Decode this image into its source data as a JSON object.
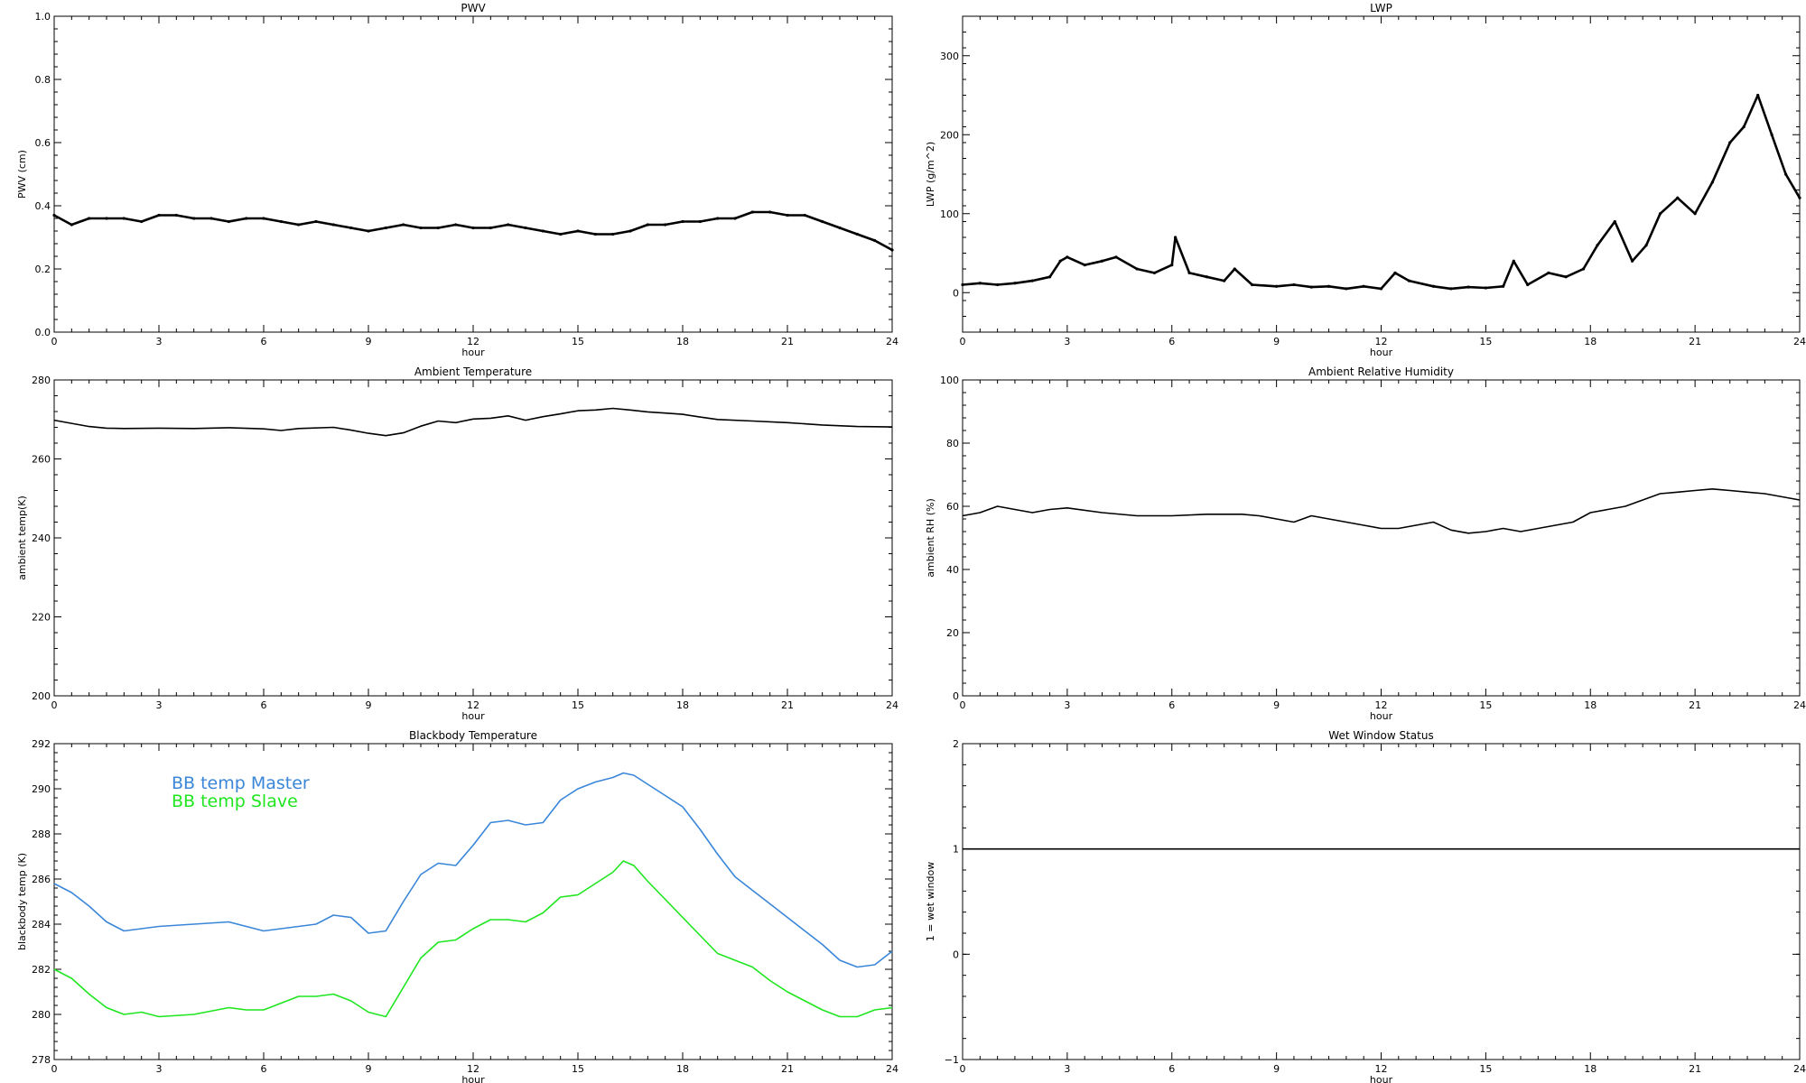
{
  "chart_data": [
    {
      "type": "line",
      "title": "PWV",
      "xlabel": "hour",
      "ylabel": "PWV (cm)",
      "xlim": [
        0,
        24
      ],
      "ylim": [
        0,
        1
      ],
      "xticks": [
        "0",
        "3",
        "6",
        "9",
        "12",
        "15",
        "18",
        "21",
        "24"
      ],
      "yticks": [
        "0.0",
        "0.2",
        "0.4",
        "0.6",
        "0.8",
        "1.0"
      ],
      "style": "dots",
      "series": [
        {
          "color": "#000000",
          "x": [
            0,
            0.5,
            1,
            1.5,
            2,
            2.5,
            3,
            3.5,
            4,
            4.5,
            5,
            5.5,
            6,
            6.5,
            7,
            7.5,
            8,
            8.5,
            9,
            9.5,
            10,
            10.5,
            11,
            11.5,
            12,
            12.5,
            13,
            13.5,
            14,
            14.5,
            15,
            15.5,
            16,
            16.5,
            17,
            17.5,
            18,
            18.5,
            19,
            19.5,
            20,
            20.5,
            21,
            21.5,
            22,
            22.5,
            23,
            23.5,
            24
          ],
          "y": [
            0.37,
            0.34,
            0.36,
            0.36,
            0.36,
            0.35,
            0.37,
            0.37,
            0.36,
            0.36,
            0.35,
            0.36,
            0.36,
            0.35,
            0.34,
            0.35,
            0.34,
            0.33,
            0.32,
            0.33,
            0.34,
            0.33,
            0.33,
            0.34,
            0.33,
            0.33,
            0.34,
            0.33,
            0.32,
            0.31,
            0.32,
            0.31,
            0.31,
            0.32,
            0.34,
            0.34,
            0.35,
            0.35,
            0.36,
            0.36,
            0.38,
            0.38,
            0.37,
            0.37,
            0.35,
            0.33,
            0.31,
            0.29,
            0.26
          ]
        }
      ]
    },
    {
      "type": "line",
      "title": "LWP",
      "xlabel": "hour",
      "ylabel": "LWP (g/m^2)",
      "xlim": [
        0,
        24
      ],
      "ylim": [
        -50,
        350
      ],
      "xticks": [
        "0",
        "3",
        "6",
        "9",
        "12",
        "15",
        "18",
        "21",
        "24"
      ],
      "yticks": [
        "0",
        "100",
        "200",
        "300"
      ],
      "style": "dots",
      "series": [
        {
          "color": "#000000",
          "x": [
            0,
            0.5,
            1,
            1.5,
            2,
            2.5,
            2.8,
            3,
            3.5,
            4,
            4.4,
            5,
            5.5,
            6,
            6.1,
            6.5,
            7,
            7.5,
            7.8,
            8.3,
            9,
            9.5,
            10,
            10.5,
            11,
            11.5,
            12,
            12.4,
            12.8,
            13.5,
            14,
            14.5,
            15,
            15.5,
            15.8,
            16.2,
            16.8,
            17.3,
            17.8,
            18.2,
            18.7,
            19.2,
            19.6,
            20,
            20.5,
            21,
            21.5,
            22,
            22.4,
            22.8,
            23.2,
            23.6,
            24
          ],
          "y": [
            10,
            12,
            10,
            12,
            15,
            20,
            40,
            45,
            35,
            40,
            45,
            30,
            25,
            35,
            70,
            25,
            20,
            15,
            30,
            10,
            8,
            10,
            7,
            8,
            5,
            8,
            5,
            25,
            15,
            8,
            5,
            7,
            6,
            8,
            40,
            10,
            25,
            20,
            30,
            60,
            90,
            40,
            60,
            100,
            120,
            100,
            140,
            190,
            210,
            250,
            200,
            150,
            120
          ]
        }
      ]
    },
    {
      "type": "line",
      "title": "Ambient Temperature",
      "xlabel": "hour",
      "ylabel": "ambient temp(K)",
      "xlim": [
        0,
        24
      ],
      "ylim": [
        200,
        280
      ],
      "xticks": [
        "0",
        "3",
        "6",
        "9",
        "12",
        "15",
        "18",
        "21",
        "24"
      ],
      "yticks": [
        "200",
        "220",
        "240",
        "260",
        "280"
      ],
      "style": "line",
      "series": [
        {
          "color": "#000000",
          "x": [
            0,
            0.5,
            1,
            1.5,
            2,
            3,
            4,
            5,
            6,
            6.5,
            7,
            8,
            8.5,
            9,
            9.5,
            10,
            10.5,
            11,
            11.5,
            12,
            12.5,
            13,
            13.5,
            14,
            14.5,
            15,
            15.5,
            16,
            16.5,
            17,
            17.5,
            18,
            18.5,
            19,
            20,
            21,
            22,
            23,
            24
          ],
          "y": [
            269.8,
            269,
            268.2,
            267.8,
            267.7,
            267.8,
            267.7,
            267.9,
            267.6,
            267.2,
            267.7,
            268,
            267.3,
            266.5,
            265.9,
            266.6,
            268.3,
            269.6,
            269.2,
            270.1,
            270.3,
            270.9,
            269.8,
            270.7,
            271.4,
            272.2,
            272.4,
            272.8,
            272.4,
            271.9,
            271.6,
            271.3,
            270.6,
            270,
            269.6,
            269.2,
            268.6,
            268.2,
            268.1
          ]
        }
      ]
    },
    {
      "type": "line",
      "title": "Ambient Relative Humidity",
      "xlabel": "hour",
      "ylabel": "ambient RH (%)",
      "xlim": [
        0,
        24
      ],
      "ylim": [
        0,
        100
      ],
      "xticks": [
        "0",
        "3",
        "6",
        "9",
        "12",
        "15",
        "18",
        "21",
        "24"
      ],
      "yticks": [
        "0",
        "20",
        "40",
        "60",
        "80",
        "100"
      ],
      "style": "line",
      "series": [
        {
          "color": "#000000",
          "x": [
            0,
            0.5,
            1,
            1.5,
            2,
            2.5,
            3,
            4,
            5,
            6,
            7,
            8,
            8.5,
            9,
            9.5,
            10,
            10.5,
            11,
            11.5,
            12,
            12.5,
            13,
            13.5,
            14,
            14.5,
            15,
            15.5,
            16,
            16.5,
            17,
            17.5,
            18,
            18.5,
            19,
            19.5,
            20,
            20.5,
            21,
            21.5,
            22,
            22.5,
            23,
            23.5,
            24
          ],
          "y": [
            57,
            58,
            60,
            59,
            58,
            59,
            59.5,
            58,
            57,
            57,
            57.5,
            57.5,
            57,
            56,
            55,
            57,
            56,
            55,
            54,
            53,
            53,
            54,
            55,
            52.5,
            51.5,
            52,
            53,
            52,
            53,
            54,
            55,
            58,
            59,
            60,
            62,
            64,
            64.5,
            65,
            65.5,
            65,
            64.5,
            64,
            63,
            62
          ]
        }
      ]
    },
    {
      "type": "line",
      "title": "Blackbody Temperature",
      "xlabel": "hour",
      "ylabel": "blackbody temp (K)",
      "xlim": [
        0,
        24
      ],
      "ylim": [
        278,
        292
      ],
      "xticks": [
        "0",
        "3",
        "6",
        "9",
        "12",
        "15",
        "18",
        "21",
        "24"
      ],
      "yticks": [
        "278",
        "280",
        "282",
        "284",
        "286",
        "288",
        "290",
        "292"
      ],
      "style": "line",
      "legend": "top-left",
      "series": [
        {
          "name": "BB temp Master",
          "color": "#3a86d8",
          "x": [
            0,
            0.5,
            1,
            1.5,
            2,
            2.5,
            3,
            4,
            5,
            5.5,
            6,
            6.5,
            7,
            7.5,
            8,
            8.5,
            9,
            9.5,
            10,
            10.5,
            11,
            11.5,
            12,
            12.5,
            13,
            13.5,
            14,
            14.5,
            15,
            15.5,
            16,
            16.3,
            16.6,
            17,
            17.5,
            18,
            18.5,
            19,
            19.5,
            20,
            20.5,
            21,
            21.5,
            22,
            22.5,
            23,
            23.5,
            24
          ],
          "y": [
            285.8,
            285.4,
            284.8,
            284.1,
            283.7,
            283.8,
            283.9,
            284,
            284.1,
            283.9,
            283.7,
            283.8,
            283.9,
            284,
            284.4,
            284.3,
            283.6,
            283.7,
            285,
            286.2,
            286.7,
            286.6,
            287.5,
            288.5,
            288.6,
            288.4,
            288.5,
            289.5,
            290,
            290.3,
            290.5,
            290.7,
            290.6,
            290.2,
            289.7,
            289.2,
            288.2,
            287.1,
            286.1,
            285.5,
            284.9,
            284.3,
            283.7,
            283.1,
            282.4,
            282.1,
            282.2,
            282.8
          ]
        },
        {
          "name": "BB temp Slave",
          "color": "#1fe61f",
          "x": [
            0,
            0.5,
            1,
            1.5,
            2,
            2.5,
            3,
            4,
            5,
            5.5,
            6,
            6.5,
            7,
            7.5,
            8,
            8.5,
            9,
            9.5,
            10,
            10.5,
            11,
            11.5,
            12,
            12.5,
            13,
            13.5,
            14,
            14.5,
            15,
            15.5,
            16,
            16.3,
            16.6,
            17,
            17.5,
            18,
            18.5,
            19,
            19.5,
            20,
            20.5,
            21,
            21.5,
            22,
            22.5,
            23,
            23.5,
            24
          ],
          "y": [
            282,
            281.6,
            280.9,
            280.3,
            280,
            280.1,
            279.9,
            280,
            280.3,
            280.2,
            280.2,
            280.5,
            280.8,
            280.8,
            280.9,
            280.6,
            280.1,
            279.9,
            281.2,
            282.5,
            283.2,
            283.3,
            283.8,
            284.2,
            284.2,
            284.1,
            284.5,
            285.2,
            285.3,
            285.8,
            286.3,
            286.8,
            286.6,
            285.9,
            285.1,
            284.3,
            283.5,
            282.7,
            282.4,
            282.1,
            281.5,
            281,
            280.6,
            280.2,
            279.9,
            279.9,
            280.2,
            280.3
          ]
        }
      ]
    },
    {
      "type": "line",
      "title": "Wet Window Status",
      "xlabel": "hour",
      "ylabel": "1 = wet window",
      "xlim": [
        0,
        24
      ],
      "ylim": [
        -1,
        2
      ],
      "xticks": [
        "0",
        "3",
        "6",
        "9",
        "12",
        "15",
        "18",
        "21",
        "24"
      ],
      "yticks": [
        "−1",
        "0",
        "1",
        "2"
      ],
      "style": "line",
      "series": [
        {
          "color": "#000000",
          "x": [
            0,
            24
          ],
          "y": [
            1,
            1
          ]
        }
      ]
    }
  ]
}
